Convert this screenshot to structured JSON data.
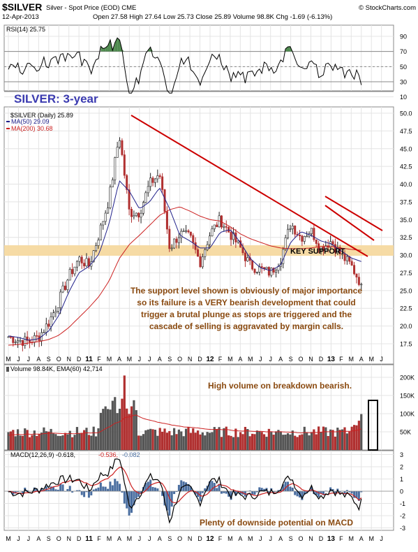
{
  "header": {
    "symbol": "$SILVER",
    "description": "Silver - Spot Price (EOD) CME",
    "copyright": "© StockCharts.com",
    "date": "12-Apr-2013",
    "quote": "Open 27.58  High 27.64  Low 25.73  Close 25.89  Volume 98.8K  Chg -1.69 (-6.13%)"
  },
  "rsi_panel": {
    "label": "RSI(14) 25.75",
    "ticks": [
      "90",
      "70",
      "50",
      "30",
      "10"
    ]
  },
  "price_panel": {
    "title": "SILVER: 3-year",
    "legend_symbol": "$SILVER (Daily) 25.89",
    "legend_ma50": "MA(50) 29.09",
    "legend_ma200": "MA(200) 30.68",
    "ticks": [
      "50.0",
      "47.5",
      "45.0",
      "42.5",
      "40.0",
      "37.5",
      "35.0",
      "32.5",
      "30.0",
      "27.5",
      "25.0",
      "22.5",
      "20.0",
      "17.5"
    ],
    "key_support_label": "KEY SUPPORT",
    "annotation_lines": [
      "The support level shown is obviously of major importance",
      "so its failure is a VERY bearish development that could",
      "trigger a brutal plunge as stops are triggered and the",
      "cascade of selling is aggravated by margin calls."
    ]
  },
  "volume_panel": {
    "label": "Volume 98.84K, EMA(60) 42,714",
    "ticks": [
      "200K",
      "150K",
      "100K",
      "50K"
    ],
    "annotation": "High volume on breakdown bearish."
  },
  "macd_panel": {
    "label_main": "MACD(12,26,9) -0.618,",
    "label_signal": "-0.536,",
    "label_hist": "-0.082",
    "ticks": [
      "3",
      "2",
      "1",
      "0",
      "-1",
      "-2",
      "-3"
    ],
    "annotation": "Plenty of downside potential on MACD"
  },
  "x_axis": {
    "labels": [
      "M",
      "J",
      "J",
      "A",
      "S",
      "O",
      "N",
      "D",
      "11",
      "F",
      "M",
      "A",
      "M",
      "J",
      "J",
      "A",
      "S",
      "O",
      "N",
      "D",
      "12",
      "F",
      "M",
      "A",
      "M",
      "J",
      "J",
      "A",
      "S",
      "O",
      "N",
      "D",
      "13",
      "F",
      "M",
      "A",
      "M",
      "J"
    ]
  },
  "colors": {
    "annotation_blue": "#3a3ab0",
    "annotation_brown": "#8a4a10",
    "trendline": "#cc0000",
    "ma50": "#20208a",
    "ma200": "#cc2020",
    "support_band": "#f5d9a0",
    "rsi_fill": "#4f8a4f",
    "volume_bar": "#b03030",
    "macd_hist": "#4a6ea0"
  },
  "chart_data": {
    "type": "line",
    "title": "SILVER: 3-year",
    "x": [
      "2010-05",
      "2010-06",
      "2010-07",
      "2010-08",
      "2010-09",
      "2010-10",
      "2010-11",
      "2010-12",
      "2011-01",
      "2011-02",
      "2011-03",
      "2011-04",
      "2011-05",
      "2011-06",
      "2011-07",
      "2011-08",
      "2011-09",
      "2011-10",
      "2011-11",
      "2011-12",
      "2012-01",
      "2012-02",
      "2012-03",
      "2012-04",
      "2012-05",
      "2012-06",
      "2012-07",
      "2012-08",
      "2012-09",
      "2012-10",
      "2012-11",
      "2012-12",
      "2013-01",
      "2013-02",
      "2013-03",
      "2013-04"
    ],
    "series": [
      {
        "name": "$SILVER (Daily)",
        "values": [
          18.5,
          18.0,
          17.8,
          18.5,
          20.5,
          23.5,
          27.0,
          29.5,
          28.5,
          33.0,
          38.0,
          47.0,
          36.0,
          36.0,
          40.0,
          41.5,
          31.0,
          33.0,
          32.5,
          29.0,
          33.0,
          35.0,
          33.0,
          31.0,
          28.5,
          28.0,
          27.5,
          29.5,
          34.5,
          32.5,
          33.5,
          31.0,
          32.0,
          30.0,
          28.5,
          25.89
        ]
      },
      {
        "name": "MA(50)",
        "values": [
          18.6,
          18.4,
          18.0,
          18.2,
          19.3,
          21.5,
          24.8,
          27.5,
          28.4,
          30.2,
          34.5,
          40.5,
          39.0,
          36.5,
          37.5,
          39.5,
          36.5,
          32.8,
          32.0,
          31.0,
          31.0,
          33.2,
          33.6,
          31.8,
          29.5,
          28.2,
          27.8,
          28.6,
          31.8,
          33.3,
          32.8,
          32.0,
          31.6,
          30.6,
          29.6,
          29.09
        ]
      },
      {
        "name": "MA(200)",
        "values": [
          17.3,
          17.4,
          17.6,
          17.8,
          18.1,
          18.7,
          19.8,
          21.2,
          22.6,
          24.2,
          26.4,
          29.5,
          31.5,
          32.8,
          34.2,
          35.6,
          36.4,
          36.8,
          36.2,
          35.5,
          35.0,
          34.8,
          34.0,
          33.0,
          32.3,
          31.8,
          31.3,
          31.0,
          30.9,
          30.9,
          31.0,
          31.2,
          31.2,
          31.0,
          30.8,
          30.68
        ]
      }
    ],
    "ylim": [
      16.5,
      50.5
    ],
    "ylabel": "",
    "xlabel": "",
    "grid": true,
    "annotations": [
      "KEY SUPPORT",
      "High volume on breakdown bearish.",
      "Plenty of downside potential on MACD"
    ]
  }
}
